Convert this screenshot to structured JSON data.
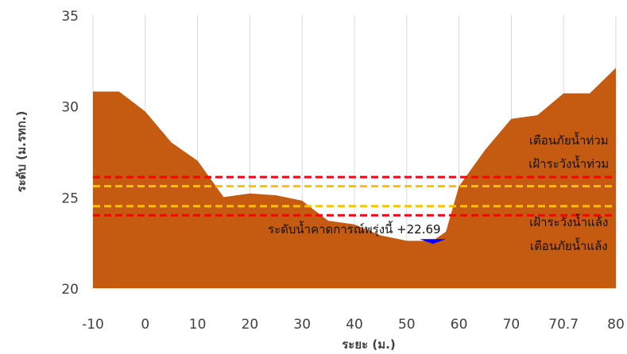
{
  "chart_data": {
    "type": "area",
    "xlabel": "ระยะ (ม.)",
    "ylabel": "ระดับ (ม.รทก.)",
    "ylim": [
      20,
      35
    ],
    "yticks": [
      20,
      25,
      30,
      35
    ],
    "xtick_labels": [
      "-10",
      "0",
      "10",
      "20",
      "30",
      "40",
      "50",
      "60",
      "70",
      "70.7",
      "80"
    ],
    "grid": "vertical",
    "legend": "none",
    "series": [
      {
        "type": "area",
        "color": "#c55a11",
        "points": [
          {
            "x": -10,
            "y": 30.8
          },
          {
            "x": -5,
            "y": 30.8
          },
          {
            "x": 0,
            "y": 29.7
          },
          {
            "x": 5,
            "y": 28.0
          },
          {
            "x": 10,
            "y": 27.0
          },
          {
            "x": 15,
            "y": 25.0
          },
          {
            "x": 20,
            "y": 25.2
          },
          {
            "x": 25,
            "y": 25.1
          },
          {
            "x": 30,
            "y": 24.8
          },
          {
            "x": 35,
            "y": 23.7
          },
          {
            "x": 40,
            "y": 23.5
          },
          {
            "x": 45,
            "y": 22.9
          },
          {
            "x": 50,
            "y": 22.6
          },
          {
            "x": 52.5,
            "y": 22.6
          },
          {
            "x": 55,
            "y": 22.6
          },
          {
            "x": 57.5,
            "y": 23.1
          },
          {
            "x": 60,
            "y": 25.6
          },
          {
            "x": 65,
            "y": 27.6
          },
          {
            "x": 70,
            "y": 29.3
          },
          {
            "x": 75,
            "y": 29.5
          },
          {
            "x": 80,
            "y": 30.7
          },
          {
            "x": 85,
            "y": 30.7
          },
          {
            "x": 90,
            "y": 32.1
          },
          {
            "x": 90,
            "y": 22.7
          }
        ]
      }
    ],
    "water_level": {
      "value": 22.69,
      "color": "#0000ff",
      "x_range": [
        52.5,
        57.5
      ]
    },
    "reference_lines": [
      {
        "value": 26.1,
        "color": "#ff0000",
        "style": "dashed"
      },
      {
        "value": 25.6,
        "color": "#ffc000",
        "style": "dashed"
      },
      {
        "value": 24.5,
        "color": "#ffc000",
        "style": "dashed"
      },
      {
        "value": 24.0,
        "color": "#ff0000",
        "style": "dashed"
      }
    ],
    "annotations": [
      {
        "text": "เตือนภัยน้ำท่วม",
        "x": 81,
        "y": 27.9,
        "anchor": "middle"
      },
      {
        "text": "เฝ้าระวังน้ำท่วม",
        "x": 81,
        "y": 26.6,
        "anchor": "middle"
      },
      {
        "text": "เฝ้าระวังน้ำแล้ง",
        "x": 81,
        "y": 23.4,
        "anchor": "middle"
      },
      {
        "text": "เตือนภัยน้ำแล้ง",
        "x": 81,
        "y": 22.1,
        "anchor": "middle"
      },
      {
        "text": "ระดับน้ำคาดการณ์พรุ่งนี้ +22.69",
        "x": 56.5,
        "y": 23.0,
        "anchor": "end"
      }
    ]
  }
}
